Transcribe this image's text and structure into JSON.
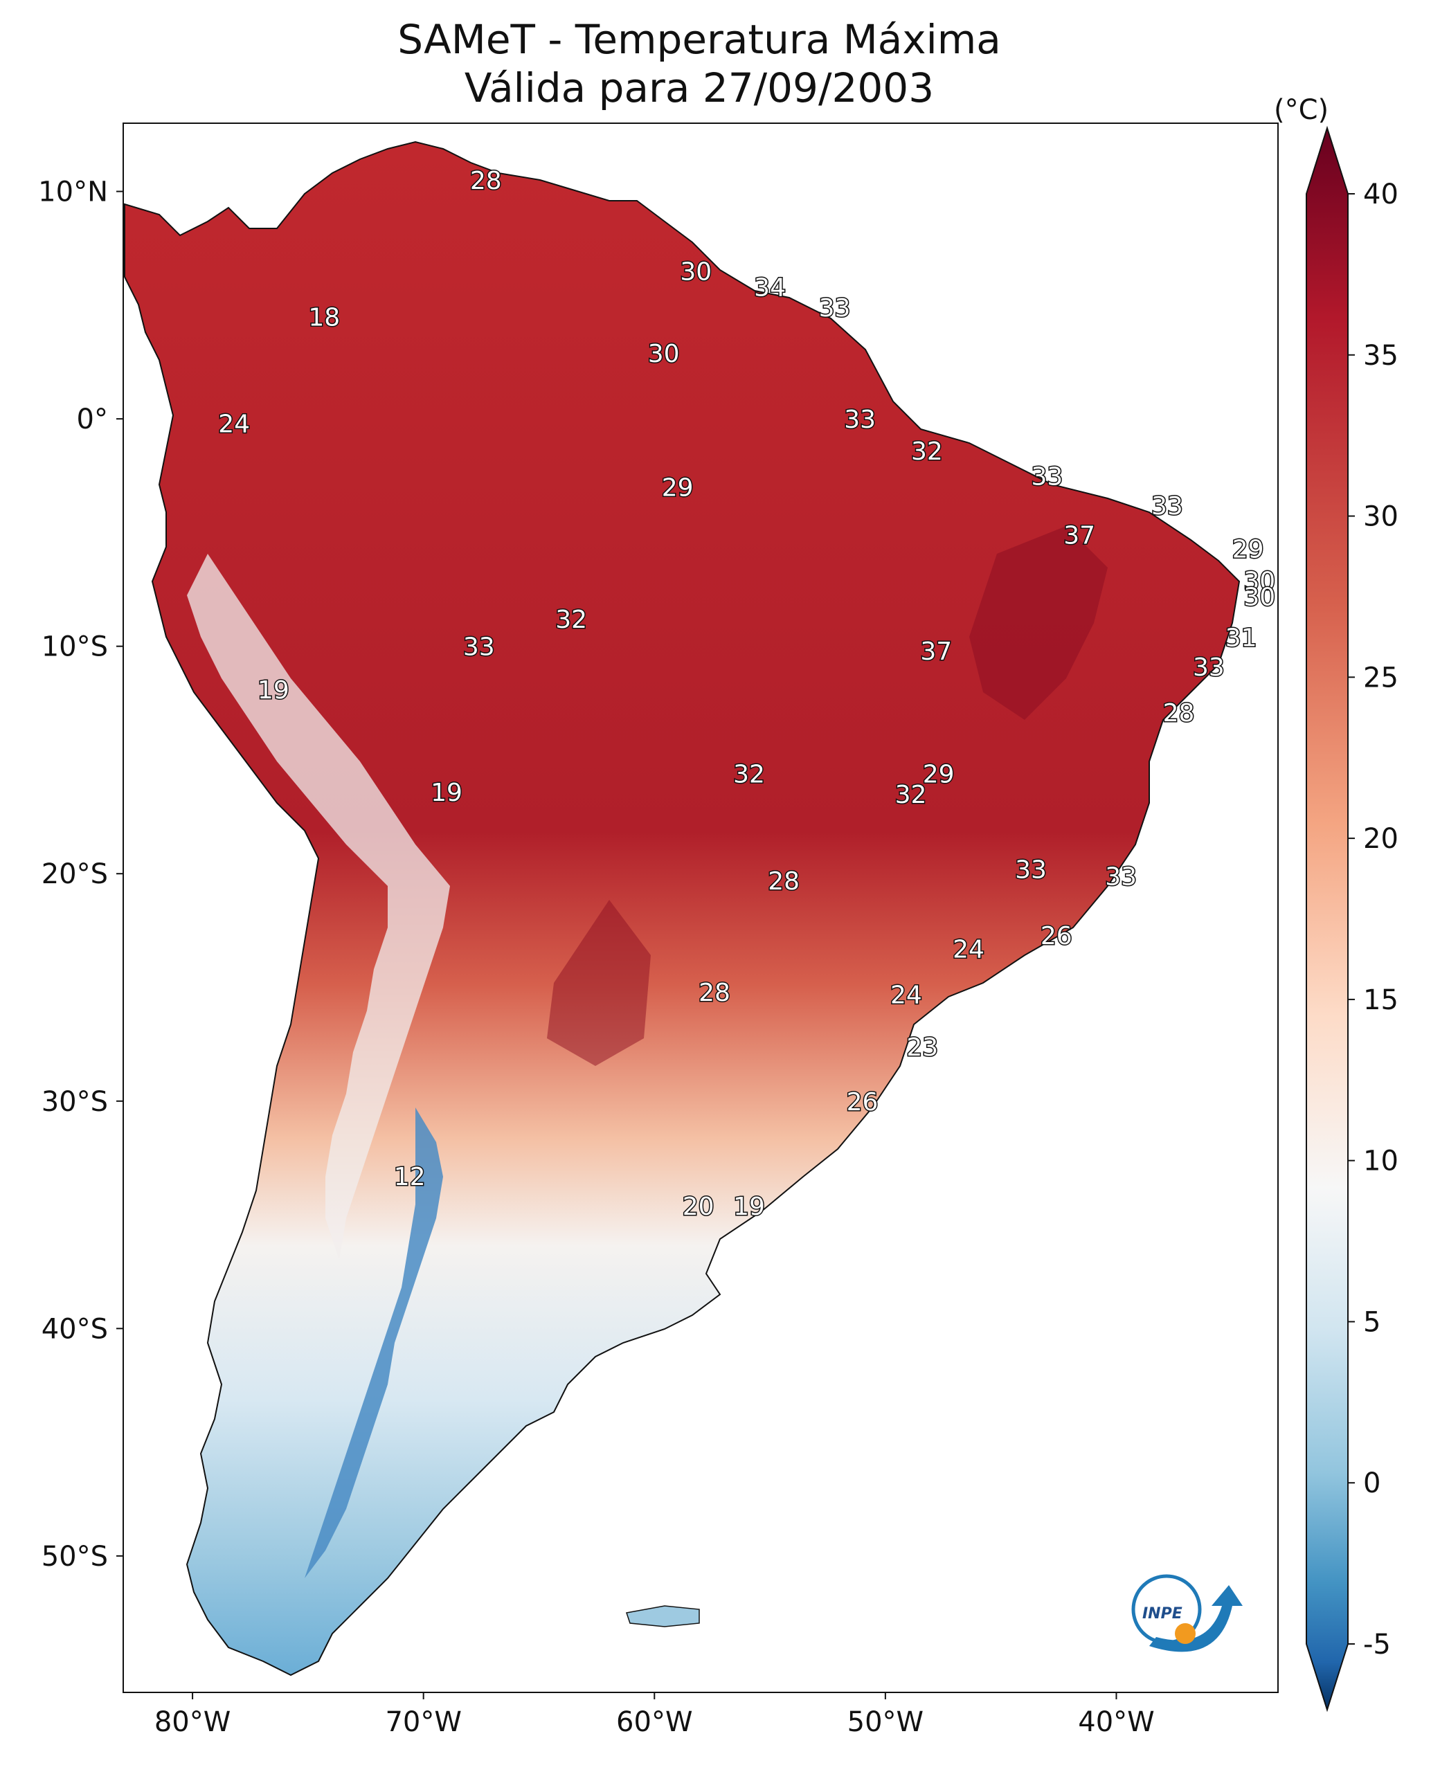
{
  "title": {
    "line1": "SAMeT - Temperatura Máxima",
    "line2": "Válida para 27/09/2003"
  },
  "axes": {
    "lon_labels": [
      "80°W",
      "70°W",
      "60°W",
      "50°W",
      "40°W"
    ],
    "lat_labels": [
      "10°N",
      "0°",
      "10°S",
      "20°S",
      "30°S",
      "40°S",
      "50°S"
    ],
    "lon_values": [
      -80,
      -70,
      -60,
      -50,
      -40
    ],
    "lat_values": [
      10,
      0,
      -10,
      -20,
      -30,
      -40,
      -50
    ],
    "lon_range": [
      -83,
      -33
    ],
    "lat_range": [
      -56,
      13
    ]
  },
  "colorbar": {
    "unit": "(°C)",
    "ticks": [
      "40",
      "35",
      "30",
      "25",
      "20",
      "15",
      "10",
      "5",
      "0",
      "-5"
    ],
    "tick_values": [
      40,
      35,
      30,
      25,
      20,
      15,
      10,
      5,
      0,
      -5
    ],
    "range": [
      -5,
      40
    ],
    "colors": {
      "top": "#67001f",
      "red": "#b2182b",
      "light_red": "#f4a582",
      "white": "#f7f7f7",
      "light_blue": "#92c5de",
      "blue": "#2166ac",
      "bottom": "#053061"
    }
  },
  "contour_labels": [
    {
      "text": "28",
      "lon": -67.3,
      "lat": 10.5
    },
    {
      "text": "18",
      "lon": -74.3,
      "lat": 4.5
    },
    {
      "text": "30",
      "lon": -58.2,
      "lat": 6.5
    },
    {
      "text": "34",
      "lon": -55.0,
      "lat": 5.8
    },
    {
      "text": "33",
      "lon": -52.2,
      "lat": 4.9
    },
    {
      "text": "30",
      "lon": -59.6,
      "lat": 2.9
    },
    {
      "text": "24",
      "lon": -78.2,
      "lat": -0.2
    },
    {
      "text": "33",
      "lon": -51.1,
      "lat": 0.0
    },
    {
      "text": "32",
      "lon": -48.2,
      "lat": -1.4
    },
    {
      "text": "29",
      "lon": -59.0,
      "lat": -3.0
    },
    {
      "text": "33",
      "lon": -43.0,
      "lat": -2.5
    },
    {
      "text": "33",
      "lon": -37.8,
      "lat": -3.8
    },
    {
      "text": "37",
      "lon": -41.6,
      "lat": -5.1
    },
    {
      "text": "29",
      "lon": -34.3,
      "lat": -5.7
    },
    {
      "text": "30",
      "lon": -33.8,
      "lat": -7.1
    },
    {
      "text": "30",
      "lon": -33.8,
      "lat": -7.8
    },
    {
      "text": "32",
      "lon": -63.6,
      "lat": -8.8
    },
    {
      "text": "33",
      "lon": -67.6,
      "lat": -10.0
    },
    {
      "text": "37",
      "lon": -47.8,
      "lat": -10.2
    },
    {
      "text": "31",
      "lon": -34.6,
      "lat": -9.6
    },
    {
      "text": "33",
      "lon": -36.0,
      "lat": -10.9
    },
    {
      "text": "19",
      "lon": -76.5,
      "lat": -11.9
    },
    {
      "text": "28",
      "lon": -37.3,
      "lat": -12.9
    },
    {
      "text": "32",
      "lon": -55.9,
      "lat": -15.6
    },
    {
      "text": "29",
      "lon": -47.7,
      "lat": -15.6
    },
    {
      "text": "32",
      "lon": -48.9,
      "lat": -16.5
    },
    {
      "text": "19",
      "lon": -69.0,
      "lat": -16.4
    },
    {
      "text": "33",
      "lon": -43.7,
      "lat": -19.8
    },
    {
      "text": "33",
      "lon": -39.8,
      "lat": -20.1
    },
    {
      "text": "28",
      "lon": -54.4,
      "lat": -20.3
    },
    {
      "text": "26",
      "lon": -42.6,
      "lat": -22.7
    },
    {
      "text": "24",
      "lon": -46.4,
      "lat": -23.3
    },
    {
      "text": "28",
      "lon": -57.4,
      "lat": -25.2
    },
    {
      "text": "24",
      "lon": -49.1,
      "lat": -25.3
    },
    {
      "text": "23",
      "lon": -48.4,
      "lat": -27.6
    },
    {
      "text": "26",
      "lon": -51.0,
      "lat": -30.0
    },
    {
      "text": "12",
      "lon": -70.6,
      "lat": -33.3
    },
    {
      "text": "20",
      "lon": -58.1,
      "lat": -34.6
    },
    {
      "text": "19",
      "lon": -55.9,
      "lat": -34.6
    }
  ],
  "logo": {
    "text": "INPE"
  }
}
